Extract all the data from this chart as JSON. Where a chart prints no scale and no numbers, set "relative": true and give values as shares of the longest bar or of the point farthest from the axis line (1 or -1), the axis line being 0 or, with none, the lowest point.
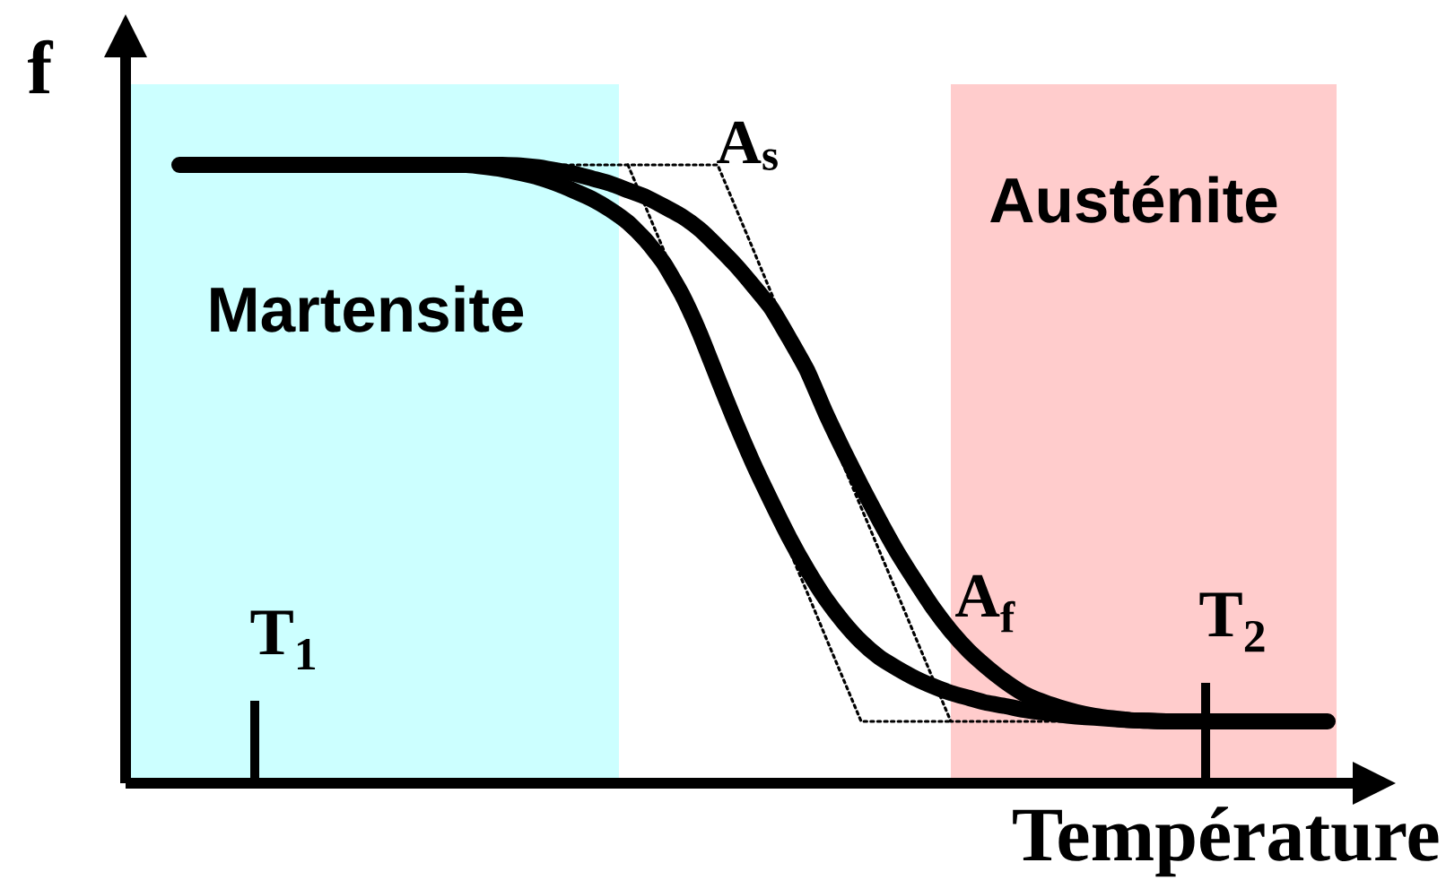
{
  "chart_data": {
    "type": "line",
    "relative": true,
    "xlabel": "Température",
    "ylabel": "f",
    "line_style": "solid",
    "categories": [
      null,
      null,
      null,
      null,
      null,
      null,
      null,
      null,
      null,
      null,
      null,
      null,
      null,
      null,
      null,
      null,
      null,
      null,
      null,
      null,
      null,
      null,
      null,
      null,
      null,
      null,
      null,
      null,
      null,
      null,
      null,
      null,
      null,
      null,
      null,
      null,
      null,
      null,
      null,
      null,
      null,
      null,
      null,
      null,
      null,
      null,
      null,
      null,
      null,
      null,
      null,
      null,
      null,
      null,
      null,
      null,
      null,
      null,
      null,
      null,
      null,
      null,
      null,
      null,
      null
    ],
    "series": [
      {
        "color": "#000000",
        "values": [
          1.0,
          1.0,
          1.0,
          1.0,
          1.0,
          1.0,
          1.0,
          1.0,
          1.0,
          1.0,
          1.0,
          1.0,
          1.0,
          1.0,
          1.0,
          1.0,
          1.0,
          0.997,
          0.993,
          0.987,
          0.98,
          0.97,
          0.958,
          0.945,
          0.928,
          0.907,
          0.878,
          0.841,
          0.791,
          0.728,
          0.655,
          0.583,
          0.516,
          0.455,
          0.397,
          0.345,
          0.299,
          0.261,
          0.229,
          0.204,
          0.186,
          0.17,
          0.157,
          0.146,
          0.138,
          0.13,
          0.125,
          0.119,
          0.115,
          0.111,
          0.108,
          0.106,
          0.104,
          0.102,
          0.101,
          0.1,
          0.1,
          null,
          null,
          null,
          null,
          null,
          null,
          null,
          null
        ]
      },
      {
        "color": "#000000",
        "values": [
          null,
          null,
          null,
          null,
          null,
          null,
          null,
          null,
          null,
          null,
          null,
          null,
          null,
          null,
          null,
          null,
          1.0,
          1.0,
          1.0,
          0.999,
          0.996,
          0.991,
          0.986,
          0.978,
          0.97,
          0.959,
          0.948,
          0.933,
          0.917,
          0.896,
          0.868,
          0.838,
          0.804,
          0.768,
          0.719,
          0.667,
          0.6,
          0.539,
          0.481,
          0.426,
          0.374,
          0.328,
          0.284,
          0.246,
          0.214,
          0.188,
          0.165,
          0.146,
          0.133,
          0.123,
          0.115,
          0.109,
          0.105,
          0.102,
          0.101,
          0.1,
          0.1,
          0.1,
          0.1,
          0.1,
          0.1,
          0.1,
          0.1,
          0.1,
          0.1
        ]
      },
      {
        "type": "line",
        "color": "#000000",
        "line_style": "dotted",
        "values": [
          null,
          null,
          null,
          null,
          null,
          null,
          null,
          null,
          null,
          null,
          null,
          null,
          null,
          null,
          null,
          null,
          null,
          null,
          1.0,
          1.0,
          1.0,
          1.0,
          1.0,
          1.0,
          1.0,
          1.0,
          1.0,
          1.0,
          1.0,
          1.0,
          1.0,
          0.931,
          0.862,
          0.792,
          0.723,
          0.654,
          0.585,
          0.515,
          0.446,
          0.377,
          0.308,
          0.238,
          0.169,
          0.1,
          0.1,
          0.1,
          0.1,
          0.1,
          0.1,
          0.1,
          0.1,
          null,
          null,
          null,
          null,
          null,
          null,
          null,
          null,
          null,
          null,
          null,
          null,
          null,
          null
        ]
      },
      {
        "type": "line",
        "color": "#000000",
        "line_style": "dotted",
        "values": [
          null,
          null,
          null,
          null,
          null,
          null,
          null,
          null,
          null,
          null,
          null,
          null,
          null,
          null,
          null,
          null,
          null,
          null,
          null,
          null,
          null,
          null,
          null,
          null,
          null,
          1.0,
          0.931,
          0.862,
          0.792,
          0.723,
          0.654,
          0.585,
          0.515,
          0.446,
          0.377,
          0.308,
          0.238,
          0.169,
          0.1,
          0.1,
          0.1,
          0.1,
          0.1,
          0.1,
          null,
          null,
          null,
          null,
          null,
          null,
          null,
          null,
          null,
          null,
          null,
          null,
          null,
          null,
          null,
          null,
          null,
          null,
          null,
          null,
          null
        ]
      }
    ],
    "annotations": [
      "Martensite",
      "Austénite",
      "A$_{s}$",
      "A$_{f}$",
      "T$_{1}$",
      "T$_{2}$"
    ]
  }
}
